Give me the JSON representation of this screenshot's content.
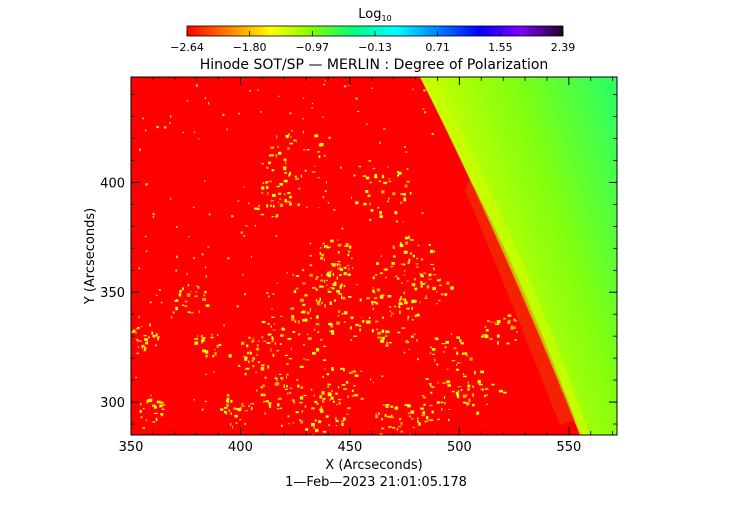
{
  "chart_data": {
    "type": "heatmap",
    "title": "Hinode SOT/SP — MERLIN : Degree of Polarization",
    "xlabel": "X (Arcseconds)",
    "ylabel": "Y (Arcseconds)",
    "xlim": [
      350,
      572
    ],
    "ylim": [
      285,
      448
    ],
    "xticks": [
      350,
      400,
      450,
      500,
      550
    ],
    "yticks": [
      300,
      350,
      400
    ],
    "timestamp": "1—Feb—2023 21:01:05.178",
    "colorbar": {
      "label": "Log",
      "label_subscript": "10",
      "range": [
        -2.64,
        2.39
      ],
      "ticks": [
        "−2.64",
        "−1.80",
        "−0.97",
        "−0.13",
        "0.71",
        "1.55",
        "2.39"
      ],
      "colors": [
        "#ff0000",
        "#ff8000",
        "#ffff00",
        "#80ff00",
        "#00ff80",
        "#00ffff",
        "#0080ff",
        "#0000ff",
        "#8000ff",
        "#200020"
      ]
    },
    "regions": [
      {
        "name": "solar-disk",
        "color": "#ff0000"
      },
      {
        "name": "active-patches",
        "color": "#ffff00"
      },
      {
        "name": "limb-band",
        "color": "#c8ff00"
      },
      {
        "name": "off-limb-corona",
        "color": "#60ff40"
      },
      {
        "name": "far-corona",
        "color": "#20ffb0"
      }
    ]
  }
}
